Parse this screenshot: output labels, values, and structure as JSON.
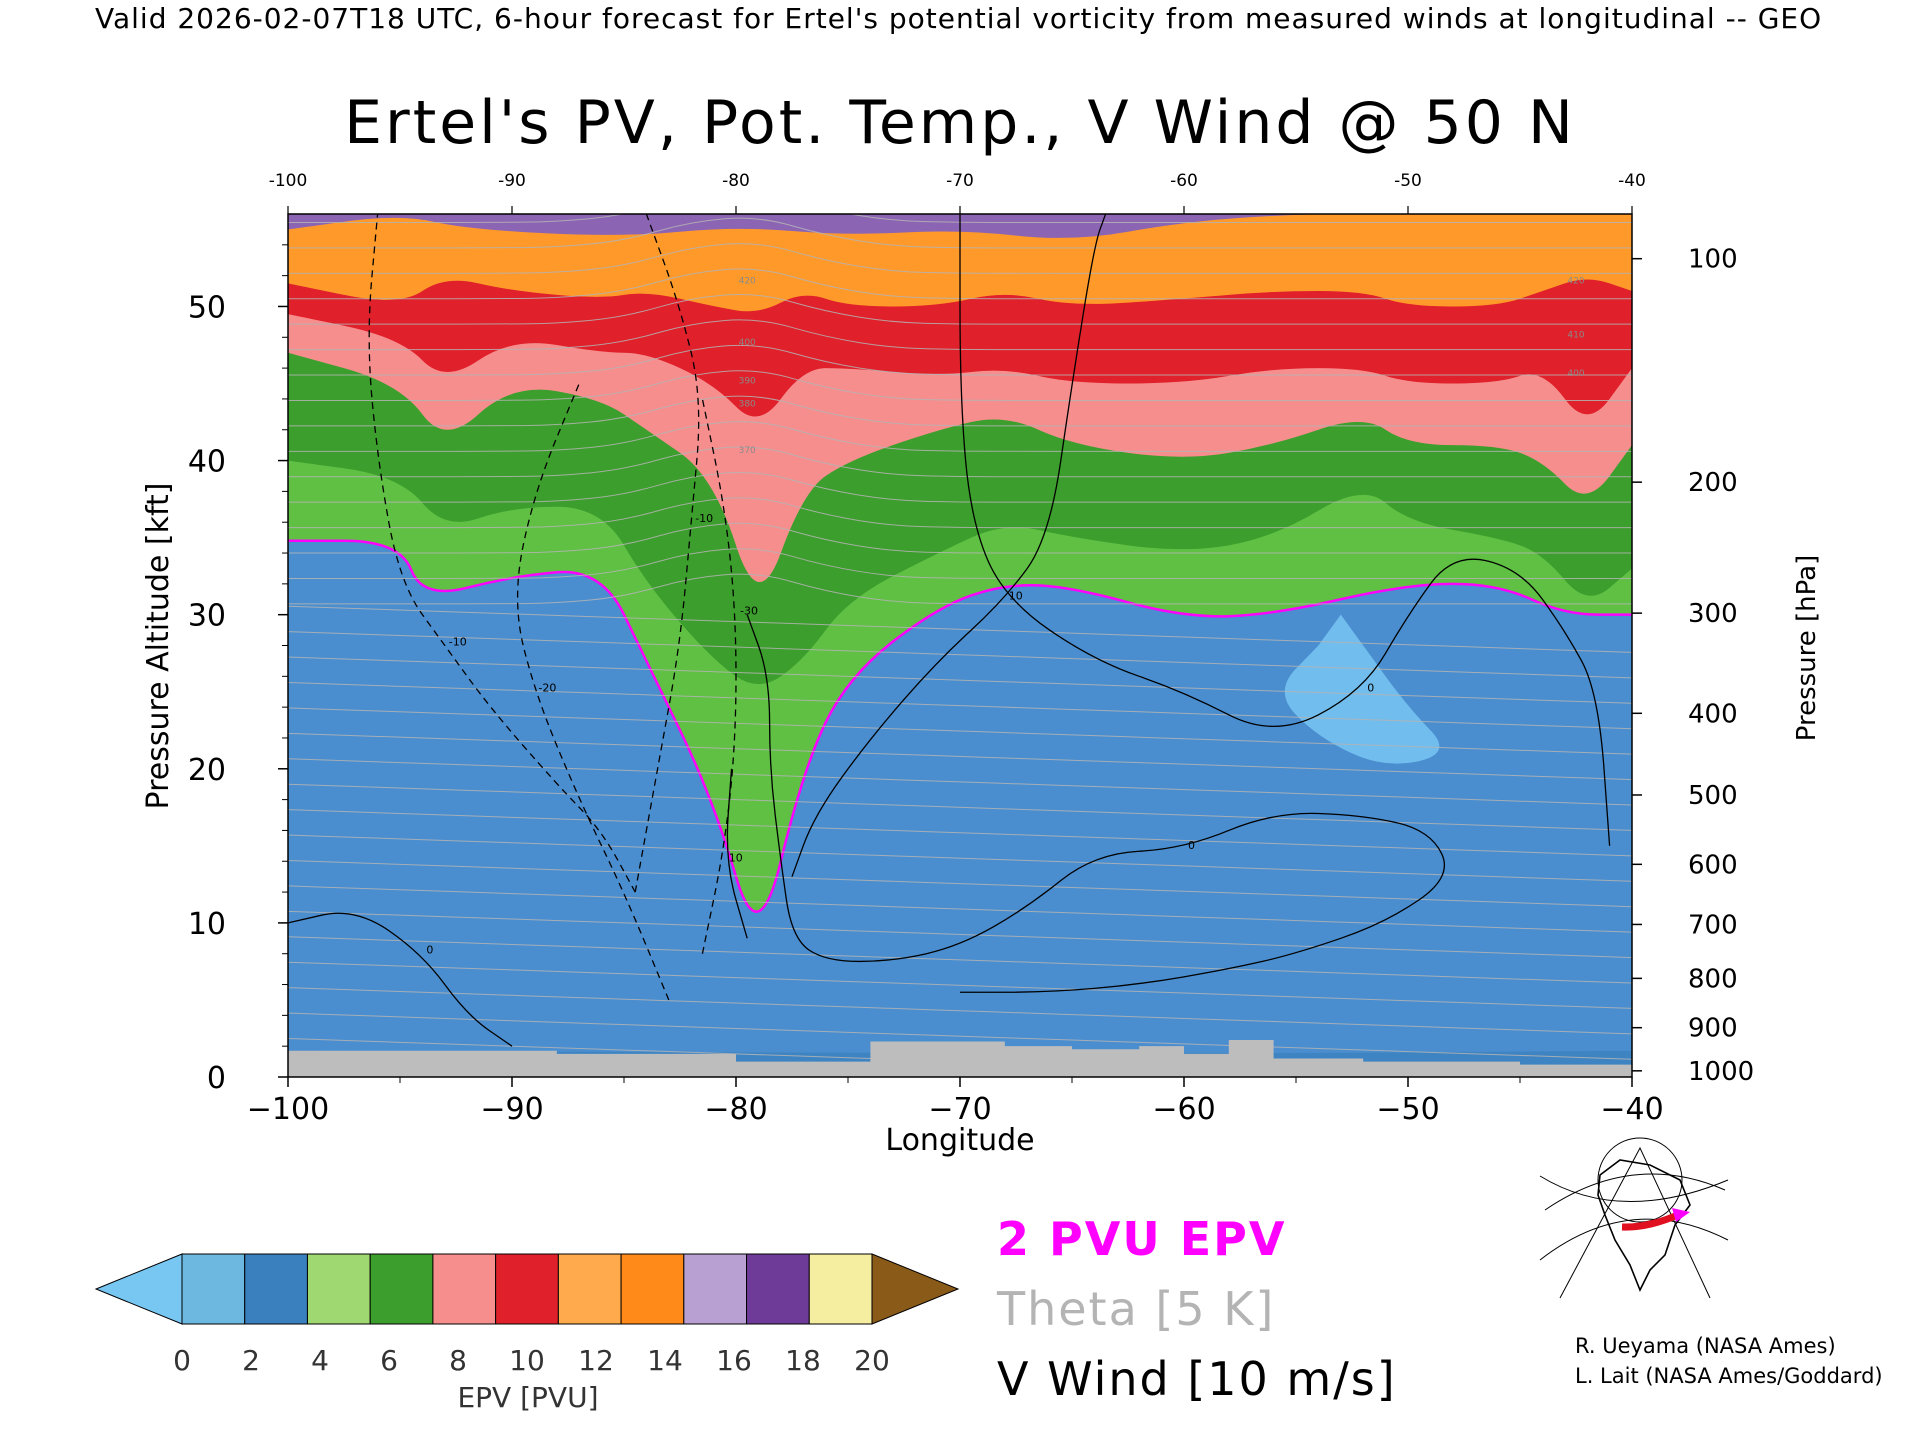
{
  "header": {
    "valid_line": "Valid 2026-02-07T18 UTC, 6-hour forecast for Ertel's potential vorticity from measured winds at longitudinal -- GEO",
    "title": "Ertel's PV, Pot. Temp., V Wind @ 50 N"
  },
  "legend": {
    "pv": "2 PVU EPV",
    "theta": "Theta [5 K]",
    "wind": "V Wind [10 m/s]",
    "colors": {
      "pv": "#ff00ff",
      "theta": "#b4b4b4",
      "wind": "#000000"
    }
  },
  "credits": [
    "R. Ueyama (NASA Ames)",
    "L. Lait (NASA Ames/Goddard)"
  ],
  "chart_data": {
    "type": "heatmap",
    "title": "Ertel's PV, Pot. Temp., V Wind @ 50 N",
    "xlabel": "Longitude",
    "ylabel": "Pressure Altitude [kft]",
    "y2label": "Pressure [hPa]",
    "xlim": [
      -100,
      -40
    ],
    "ylim": [
      0,
      56
    ],
    "x_ticks": [
      -100,
      -90,
      -80,
      -70,
      -60,
      -50,
      -40
    ],
    "y_ticks": [
      0,
      10,
      20,
      30,
      40,
      50
    ],
    "pressure_ticks": [
      {
        "hpa": 100,
        "kft": 53.1
      },
      {
        "hpa": 200,
        "kft": 38.6
      },
      {
        "hpa": 300,
        "kft": 30.1
      },
      {
        "hpa": 400,
        "kft": 23.6
      },
      {
        "hpa": 500,
        "kft": 18.3
      },
      {
        "hpa": 600,
        "kft": 13.8
      },
      {
        "hpa": 700,
        "kft": 9.9
      },
      {
        "hpa": 800,
        "kft": 6.4
      },
      {
        "hpa": 900,
        "kft": 3.2
      },
      {
        "hpa": 1000,
        "kft": 0.4
      }
    ],
    "colorbar": {
      "label": "EPV [PVU]",
      "ticks": [
        0,
        2,
        4,
        6,
        8,
        10,
        12,
        14,
        16,
        18,
        20
      ],
      "colors": [
        "#6db8e0",
        "#3a7fbe",
        "#9fd870",
        "#3c9e2c",
        "#f68e8e",
        "#e0202a",
        "#ffaa4c",
        "#ff8a1a",
        "#b8a0d2",
        "#6e3c98",
        "#f5eea0"
      ],
      "under_color": "#78c6f2",
      "over_color": "#8a5a18"
    },
    "pv_layers": [
      {
        "pvu": 1,
        "color": "#4a8ed0",
        "points": [
          [
            -100,
            1.7
          ],
          [
            -60,
            1.5
          ],
          [
            -40,
            1.7
          ]
        ]
      },
      {
        "pvu": 2,
        "color": "#5fc044",
        "points": [
          [
            -100,
            34.8
          ],
          [
            -95,
            34.8
          ],
          [
            -94,
            31
          ],
          [
            -90,
            32.5
          ],
          [
            -86,
            33
          ],
          [
            -84,
            27
          ],
          [
            -81,
            18
          ],
          [
            -79,
            8
          ],
          [
            -77,
            20
          ],
          [
            -75,
            26
          ],
          [
            -71,
            30.5
          ],
          [
            -68,
            32
          ],
          [
            -65,
            31.8
          ],
          [
            -60,
            29.8
          ],
          [
            -56,
            30
          ],
          [
            -50,
            32
          ],
          [
            -46,
            32
          ],
          [
            -43,
            30
          ],
          [
            -40,
            30
          ]
        ]
      },
      {
        "pvu": 5,
        "color": "#3c9e2c",
        "points": [
          [
            -100,
            40
          ],
          [
            -95,
            39
          ],
          [
            -93,
            35.5
          ],
          [
            -90,
            37
          ],
          [
            -86,
            37
          ],
          [
            -84,
            32
          ],
          [
            -81,
            27
          ],
          [
            -79,
            25
          ],
          [
            -77,
            27
          ],
          [
            -75,
            31
          ],
          [
            -71,
            34
          ],
          [
            -68,
            36
          ],
          [
            -65,
            35
          ],
          [
            -60,
            34
          ],
          [
            -56,
            35
          ],
          [
            -52,
            38.5
          ],
          [
            -50,
            36
          ],
          [
            -46,
            35
          ],
          [
            -44,
            34
          ],
          [
            -42,
            30.5
          ],
          [
            -40,
            33
          ]
        ]
      },
      {
        "pvu": 8,
        "color": "#f68e8e",
        "points": [
          [
            -100,
            47
          ],
          [
            -95,
            45
          ],
          [
            -93,
            41
          ],
          [
            -90,
            45
          ],
          [
            -86,
            44
          ],
          [
            -84,
            42
          ],
          [
            -81,
            39
          ],
          [
            -79,
            30
          ],
          [
            -77,
            38
          ],
          [
            -75,
            40
          ],
          [
            -71,
            42
          ],
          [
            -68,
            43
          ],
          [
            -65,
            41
          ],
          [
            -60,
            40
          ],
          [
            -56,
            41
          ],
          [
            -52,
            43
          ],
          [
            -50,
            41
          ],
          [
            -46,
            41
          ],
          [
            -44,
            40
          ],
          [
            -42,
            37
          ],
          [
            -40,
            41
          ]
        ]
      },
      {
        "pvu": 10,
        "color": "#e0202a",
        "points": [
          [
            -100,
            49.5
          ],
          [
            -95,
            48
          ],
          [
            -93,
            45
          ],
          [
            -90,
            48
          ],
          [
            -86,
            47
          ],
          [
            -84,
            47
          ],
          [
            -81,
            45
          ],
          [
            -79,
            42
          ],
          [
            -77,
            46
          ],
          [
            -75,
            46
          ],
          [
            -71,
            45.5
          ],
          [
            -68,
            46
          ],
          [
            -65,
            45
          ],
          [
            -60,
            45
          ],
          [
            -56,
            46
          ],
          [
            -52,
            46
          ],
          [
            -50,
            45
          ],
          [
            -46,
            45
          ],
          [
            -44,
            46
          ],
          [
            -42,
            42
          ],
          [
            -40,
            46
          ]
        ]
      },
      {
        "pvu": 12,
        "color": "#ff9a2a",
        "points": [
          [
            -100,
            51.5
          ],
          [
            -95,
            50
          ],
          [
            -93,
            52
          ],
          [
            -90,
            51
          ],
          [
            -86,
            50.5
          ],
          [
            -84,
            51
          ],
          [
            -81,
            50
          ],
          [
            -79,
            49.5
          ],
          [
            -77,
            51
          ],
          [
            -75,
            50
          ],
          [
            -71,
            50
          ],
          [
            -68,
            51
          ],
          [
            -65,
            50
          ],
          [
            -60,
            50.5
          ],
          [
            -56,
            51
          ],
          [
            -52,
            51
          ],
          [
            -50,
            50
          ],
          [
            -46,
            50
          ],
          [
            -44,
            51
          ],
          [
            -42,
            52
          ],
          [
            -40,
            51
          ]
        ]
      },
      {
        "pvu": 15,
        "color": "#8c64b4",
        "points": [
          [
            -100,
            55
          ],
          [
            -95,
            56
          ],
          [
            -92,
            55
          ],
          [
            -85,
            54.5
          ],
          [
            -80,
            55.2
          ],
          [
            -75,
            54.6
          ],
          [
            -70,
            55
          ],
          [
            -65,
            54.2
          ],
          [
            -60,
            55.5
          ],
          [
            -55,
            56
          ],
          [
            -50,
            56
          ],
          [
            -45,
            56
          ],
          [
            -40,
            56
          ]
        ]
      }
    ],
    "surface": [
      [
        -100,
        1.7
      ],
      [
        -92,
        1.7
      ],
      [
        -88,
        1.5
      ],
      [
        -84,
        1.5
      ],
      [
        -80,
        1.0
      ],
      [
        -77,
        1.0
      ],
      [
        -74,
        2.3
      ],
      [
        -71,
        2.3
      ],
      [
        -68,
        2.0
      ],
      [
        -65,
        1.8
      ],
      [
        -62,
        2.0
      ],
      [
        -60,
        1.5
      ],
      [
        -58,
        2.4
      ],
      [
        -56,
        1.2
      ],
      [
        -52,
        1.0
      ],
      [
        -45,
        0.8
      ],
      [
        -40,
        1.0
      ]
    ],
    "wind_contours": [
      {
        "label": "0",
        "dashed": false,
        "points": [
          [
            -79.5,
            30
          ],
          [
            -78.5,
            26
          ],
          [
            -78.5,
            20
          ],
          [
            -78,
            14
          ],
          [
            -77.5,
            9
          ],
          [
            -76,
            7.5
          ],
          [
            -73,
            7.5
          ],
          [
            -70,
            8.5
          ],
          [
            -67,
            11
          ],
          [
            -64,
            14.5
          ],
          [
            -60,
            14.8
          ],
          [
            -56,
            17.2
          ],
          [
            -52,
            17
          ],
          [
            -49,
            16
          ],
          [
            -48,
            13
          ],
          [
            -51,
            10
          ],
          [
            -55,
            8
          ],
          [
            -58,
            7
          ],
          [
            -62,
            6
          ],
          [
            -66,
            5.5
          ],
          [
            -70,
            5.5
          ]
        ]
      },
      {
        "label": "10",
        "dashed": false,
        "points": [
          [
            -77.5,
            13
          ],
          [
            -76.5,
            17
          ],
          [
            -74,
            22
          ],
          [
            -71,
            27
          ],
          [
            -68,
            31
          ],
          [
            -66,
            35
          ],
          [
            -65,
            45
          ],
          [
            -64,
            54
          ],
          [
            -63.5,
            56
          ]
        ]
      },
      {
        "label": "10",
        "dashed": false,
        "points": [
          [
            -79.5,
            9
          ],
          [
            -80.5,
            14
          ],
          [
            -80.2,
            20
          ]
        ]
      },
      {
        "label": "0",
        "dashed": false,
        "points": [
          [
            -100,
            10
          ],
          [
            -97,
            11
          ],
          [
            -94,
            8
          ],
          [
            -92,
            4
          ],
          [
            -90,
            2
          ]
        ]
      },
      {
        "label": "0",
        "dashed": false,
        "points": [
          [
            -70,
            56
          ],
          [
            -70,
            44
          ],
          [
            -69.5,
            36
          ],
          [
            -68,
            31
          ],
          [
            -64,
            27
          ],
          [
            -60,
            25
          ],
          [
            -56,
            22
          ],
          [
            -52,
            25
          ],
          [
            -50,
            30
          ],
          [
            -48,
            34
          ],
          [
            -45,
            33
          ],
          [
            -43,
            29
          ],
          [
            -41.5,
            25
          ],
          [
            -41,
            15
          ]
        ]
      },
      {
        "label": "-10",
        "dashed": true,
        "points": [
          [
            -84.5,
            12
          ],
          [
            -83.5,
            20
          ],
          [
            -82.5,
            28
          ],
          [
            -82,
            36
          ],
          [
            -81.5,
            44
          ],
          [
            -82.5,
            50
          ],
          [
            -84,
            56
          ]
        ]
      },
      {
        "label": "-10",
        "dashed": true,
        "points": [
          [
            -84.5,
            12
          ],
          [
            -86,
            16
          ],
          [
            -88,
            19
          ],
          [
            -91,
            24
          ],
          [
            -93,
            28
          ],
          [
            -95,
            32
          ],
          [
            -96,
            40
          ],
          [
            -96.5,
            48
          ],
          [
            -96,
            56
          ]
        ]
      },
      {
        "label": "-20",
        "dashed": true,
        "points": [
          [
            -83,
            5
          ],
          [
            -85,
            12
          ],
          [
            -87,
            18
          ],
          [
            -89,
            25
          ],
          [
            -90,
            31
          ],
          [
            -89,
            38
          ],
          [
            -87,
            45
          ]
        ]
      },
      {
        "label": "-30",
        "dashed": true,
        "points": [
          [
            -81.5,
            8
          ],
          [
            -80.5,
            15
          ],
          [
            -80,
            22
          ],
          [
            -80,
            30
          ],
          [
            -80.5,
            37
          ],
          [
            -81.5,
            44
          ]
        ]
      }
    ],
    "theta_labels": [
      {
        "x": -79.5,
        "y": 51.5,
        "text": "420"
      },
      {
        "x": -79.5,
        "y": 47.5,
        "text": "400"
      },
      {
        "x": -79.5,
        "y": 45,
        "text": "390"
      },
      {
        "x": -79.5,
        "y": 43.5,
        "text": "380"
      },
      {
        "x": -79.5,
        "y": 40.5,
        "text": "370"
      },
      {
        "x": -42.5,
        "y": 51.5,
        "text": "420"
      },
      {
        "x": -42.5,
        "y": 48,
        "text": "410"
      },
      {
        "x": -42.5,
        "y": 45.5,
        "text": "400"
      }
    ]
  }
}
